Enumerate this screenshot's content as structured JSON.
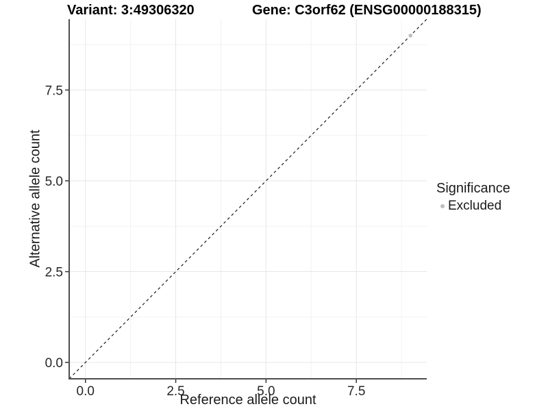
{
  "header": {
    "left_title": "Variant: 3:49306320",
    "right_title": "Gene: C3orf62 (ENSG00000188315)"
  },
  "chart_data": {
    "type": "scatter",
    "xlabel": "Reference allele count",
    "ylabel": "Alternative allele count",
    "xlim": [
      -0.45,
      9.45
    ],
    "ylim": [
      -0.45,
      9.45
    ],
    "x_ticks": [
      0.0,
      2.5,
      5.0,
      7.5
    ],
    "y_ticks": [
      0.0,
      2.5,
      5.0,
      7.5
    ],
    "x_minor_ticks": [
      1.25,
      3.75,
      6.25,
      8.75
    ],
    "y_minor_ticks": [
      1.25,
      3.75,
      6.25,
      8.75
    ],
    "tick_decimals": 1,
    "grid": true,
    "identity_line": {
      "style": "dashed",
      "from": -0.45,
      "to": 9.45,
      "color": "#1a1a1a"
    },
    "series": [
      {
        "name": "Excluded",
        "color": "#bdbdbd",
        "points": [
          [
            9,
            9
          ]
        ]
      }
    ],
    "legend": {
      "position": "right",
      "title": "Significance",
      "items": [
        {
          "label": "Excluded",
          "color": "#bdbdbd"
        }
      ]
    },
    "colors": {
      "grid_major": "#e6e6e6",
      "grid_minor": "#f2f2f2",
      "axis": "#4d4d4d",
      "tick_mark": "#333333",
      "tick_text": "#262626",
      "background": "#ffffff"
    }
  }
}
